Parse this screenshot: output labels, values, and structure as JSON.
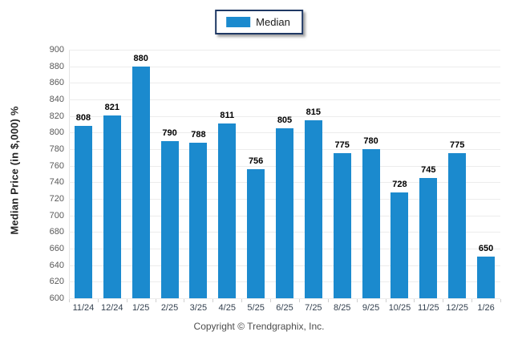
{
  "legend": {
    "label": "Median",
    "swatch_color": "#1b8ace"
  },
  "y_axis_title": "Median Price (in $,000) %",
  "footer": {
    "copyright": "Copyright © Trendgraphix, Inc."
  },
  "chart_data": {
    "type": "bar",
    "title": "",
    "xlabel": "",
    "ylabel": "Median Price (in $,000) %",
    "categories": [
      "11/24",
      "12/24",
      "1/25",
      "2/25",
      "3/25",
      "4/25",
      "5/25",
      "6/25",
      "7/25",
      "8/25",
      "9/25",
      "10/25",
      "11/25",
      "12/25",
      "1/26"
    ],
    "series": [
      {
        "name": "Median",
        "values": [
          808,
          821,
          880,
          790,
          788,
          811,
          756,
          805,
          815,
          775,
          780,
          728,
          745,
          775,
          650
        ],
        "color": "#1b8ace"
      }
    ],
    "ylim": [
      600,
      900
    ],
    "ytick_step": 20,
    "grid": true,
    "legend_position": "top-center",
    "value_labels": true
  }
}
